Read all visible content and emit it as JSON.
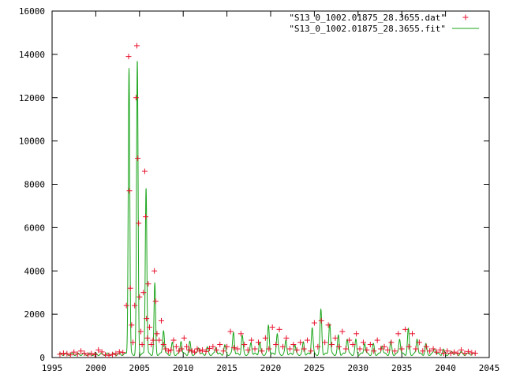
{
  "chart_data": {
    "type": "scatter",
    "xlim": [
      1995,
      2045
    ],
    "ylim": [
      0,
      16000
    ],
    "x_ticks": [
      1995,
      2000,
      2005,
      2010,
      2015,
      2020,
      2025,
      2030,
      2035,
      2040,
      2045
    ],
    "y_ticks": [
      0,
      2000,
      4000,
      6000,
      8000,
      10000,
      12000,
      14000,
      16000
    ],
    "grid": false,
    "legend_position": "top-right",
    "colors": {
      "data": "#e8112d",
      "fit": "#1aa51a",
      "axis": "#000000"
    },
    "series": [
      {
        "name": "\"S13_0_1002.01875_28.3655.dat\"",
        "style": "points",
        "x": [
          1995.9,
          1996.3,
          1996.7,
          1997.1,
          1997.5,
          1997.9,
          1998.3,
          1998.7,
          1999.1,
          1999.5,
          1999.9,
          2000.3,
          2000.7,
          2001.1,
          2001.5,
          2001.9,
          2002.3,
          2002.7,
          2003.1,
          2003.5,
          2003.75,
          2003.85,
          2003.95,
          2004.1,
          2004.25,
          2004.45,
          2004.6,
          2004.7,
          2004.8,
          2004.9,
          2005.0,
          2005.15,
          2005.3,
          2005.45,
          2005.6,
          2005.7,
          2005.8,
          2005.9,
          2006.0,
          2006.15,
          2006.35,
          2006.55,
          2006.7,
          2006.85,
          2007.0,
          2007.25,
          2007.5,
          2007.75,
          2008.0,
          2008.3,
          2008.6,
          2008.9,
          2009.2,
          2009.5,
          2009.8,
          2010.1,
          2010.4,
          2010.7,
          2011.0,
          2011.3,
          2011.6,
          2011.9,
          2012.2,
          2012.6,
          2013.0,
          2013.4,
          2013.8,
          2014.2,
          2014.6,
          2015.0,
          2015.4,
          2015.8,
          2016.2,
          2016.6,
          2017.0,
          2017.4,
          2017.8,
          2018.2,
          2018.6,
          2019.0,
          2019.4,
          2019.8,
          2020.2,
          2020.6,
          2021.0,
          2021.4,
          2021.8,
          2022.2,
          2022.6,
          2023.0,
          2023.4,
          2023.8,
          2024.2,
          2024.6,
          2025.0,
          2025.4,
          2025.8,
          2026.2,
          2026.6,
          2027.0,
          2027.4,
          2027.8,
          2028.2,
          2028.6,
          2029.0,
          2029.4,
          2029.8,
          2030.2,
          2030.6,
          2031.0,
          2031.4,
          2031.8,
          2032.2,
          2032.6,
          2033.0,
          2033.4,
          2033.8,
          2034.2,
          2034.6,
          2035.0,
          2035.4,
          2035.8,
          2036.2,
          2036.6,
          2037.0,
          2037.4,
          2037.8,
          2038.2,
          2038.6,
          2039.0,
          2039.4,
          2039.8,
          2040.2,
          2040.6,
          2041.0,
          2041.4,
          2041.8,
          2042.2,
          2042.6,
          2043.0,
          2043.4
        ],
        "y": [
          150,
          200,
          180,
          120,
          250,
          160,
          300,
          200,
          120,
          180,
          140,
          350,
          260,
          120,
          100,
          140,
          180,
          260,
          230,
          2400,
          13900,
          7700,
          3200,
          1500,
          700,
          2400,
          12000,
          14400,
          9200,
          6200,
          2800,
          1200,
          600,
          3000,
          8600,
          6500,
          1800,
          900,
          3400,
          1400,
          600,
          800,
          4000,
          2600,
          1100,
          800,
          1700,
          600,
          400,
          300,
          350,
          800,
          500,
          300,
          400,
          900,
          500,
          350,
          300,
          250,
          400,
          300,
          350,
          280,
          420,
          500,
          350,
          600,
          300,
          500,
          1200,
          450,
          400,
          1100,
          600,
          350,
          800,
          400,
          700,
          300,
          900,
          400,
          1400,
          600,
          1300,
          500,
          900,
          400,
          600,
          350,
          700,
          400,
          800,
          300,
          1600,
          500,
          1700,
          700,
          1500,
          600,
          900,
          500,
          1200,
          400,
          800,
          600,
          1100,
          400,
          700,
          350,
          600,
          300,
          800,
          400,
          500,
          350,
          700,
          300,
          1100,
          400,
          1300,
          500,
          1100,
          400,
          700,
          300,
          500,
          300,
          400,
          250,
          350,
          200,
          300,
          200,
          250,
          200,
          350,
          200,
          280,
          220,
          200
        ]
      },
      {
        "name": "\"S13_0_1002.01875_28.3655.fit\"",
        "style": "lines",
        "peaks": [
          {
            "x": 2003.8,
            "y": 13400,
            "w": 0.22
          },
          {
            "x": 2004.75,
            "y": 13700,
            "w": 0.22
          },
          {
            "x": 2005.75,
            "y": 7900,
            "w": 0.22
          },
          {
            "x": 2006.75,
            "y": 3400,
            "w": 0.22
          },
          {
            "x": 2007.75,
            "y": 1300,
            "w": 0.25
          },
          {
            "x": 2008.75,
            "y": 650,
            "w": 0.25
          },
          {
            "x": 2009.75,
            "y": 800,
            "w": 0.25
          },
          {
            "x": 2010.75,
            "y": 700,
            "w": 0.25
          },
          {
            "x": 2011.75,
            "y": 500,
            "w": 0.25
          },
          {
            "x": 2012.75,
            "y": 450,
            "w": 0.25
          },
          {
            "x": 2013.75,
            "y": 500,
            "w": 0.25
          },
          {
            "x": 2014.75,
            "y": 550,
            "w": 0.25
          },
          {
            "x": 2015.75,
            "y": 1200,
            "w": 0.25
          },
          {
            "x": 2016.75,
            "y": 1000,
            "w": 0.25
          },
          {
            "x": 2017.75,
            "y": 700,
            "w": 0.25
          },
          {
            "x": 2018.75,
            "y": 700,
            "w": 0.25
          },
          {
            "x": 2019.75,
            "y": 1500,
            "w": 0.25
          },
          {
            "x": 2020.75,
            "y": 1100,
            "w": 0.25
          },
          {
            "x": 2021.75,
            "y": 800,
            "w": 0.25
          },
          {
            "x": 2022.75,
            "y": 600,
            "w": 0.25
          },
          {
            "x": 2023.75,
            "y": 700,
            "w": 0.25
          },
          {
            "x": 2024.75,
            "y": 1400,
            "w": 0.25
          },
          {
            "x": 2025.75,
            "y": 2200,
            "w": 0.25
          },
          {
            "x": 2026.75,
            "y": 1600,
            "w": 0.25
          },
          {
            "x": 2027.75,
            "y": 1000,
            "w": 0.25
          },
          {
            "x": 2028.75,
            "y": 900,
            "w": 0.25
          },
          {
            "x": 2029.75,
            "y": 800,
            "w": 0.25
          },
          {
            "x": 2030.75,
            "y": 700,
            "w": 0.25
          },
          {
            "x": 2031.75,
            "y": 600,
            "w": 0.25
          },
          {
            "x": 2032.75,
            "y": 600,
            "w": 0.25
          },
          {
            "x": 2033.75,
            "y": 700,
            "w": 0.25
          },
          {
            "x": 2034.75,
            "y": 900,
            "w": 0.25
          },
          {
            "x": 2035.75,
            "y": 1300,
            "w": 0.25
          },
          {
            "x": 2036.75,
            "y": 900,
            "w": 0.25
          },
          {
            "x": 2037.75,
            "y": 600,
            "w": 0.25
          },
          {
            "x": 2038.75,
            "y": 450,
            "w": 0.25
          },
          {
            "x": 2039.75,
            "y": 350,
            "w": 0.25
          },
          {
            "x": 2040.75,
            "y": 300,
            "w": 0.25
          },
          {
            "x": 2041.75,
            "y": 250,
            "w": 0.25
          },
          {
            "x": 2042.75,
            "y": 200,
            "w": 0.25
          }
        ],
        "baseline": 150,
        "x_range": [
          1995.8,
          2043.4
        ]
      }
    ]
  }
}
